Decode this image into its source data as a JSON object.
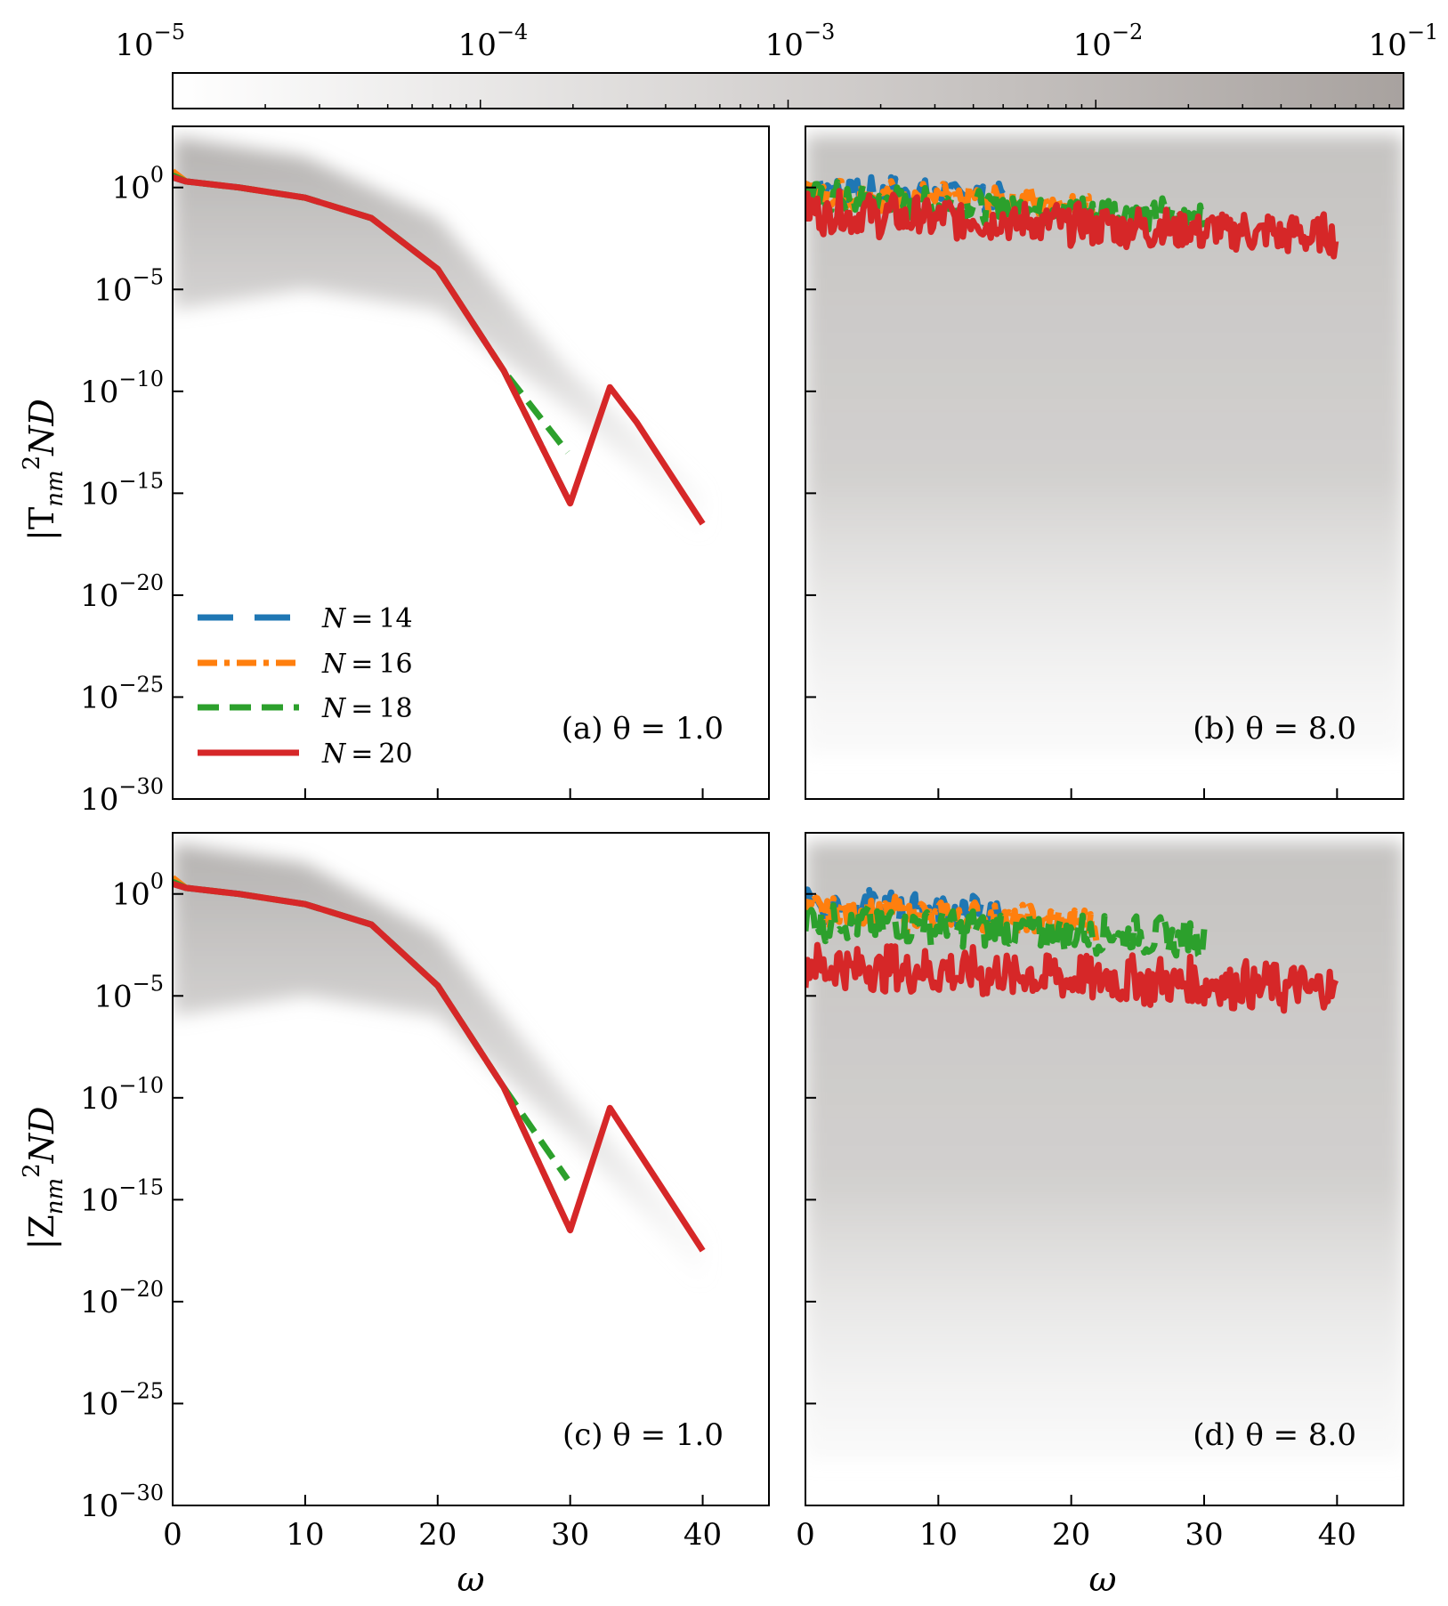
{
  "chart_data": {
    "type": "line",
    "colorbar": {
      "scale": "log",
      "range": [
        1e-05,
        0.1
      ],
      "tick_labels": [
        "10",
        "10",
        "10",
        "10",
        "10"
      ],
      "tick_exponents": [
        "−5",
        "−4",
        "−3",
        "−2",
        "−1"
      ],
      "colors": [
        "#ffffff",
        "#a8a29f"
      ]
    },
    "series_style": [
      {
        "name": "N = 14",
        "n": "14",
        "color": "#1f77b4",
        "dash": "dashed"
      },
      {
        "name": "N = 16",
        "n": "16",
        "color": "#ff7f0e",
        "dash": "dashdot"
      },
      {
        "name": "N = 18",
        "n": "18",
        "color": "#2ca02c",
        "dash": "dashed-short"
      },
      {
        "name": "N = 20",
        "n": "20",
        "color": "#d62728",
        "dash": "solid"
      }
    ],
    "legend": {
      "prefix": "N",
      "eq": "=",
      "placement": "lower-left of panel (a)"
    },
    "xaxis": {
      "label": "ω",
      "range": [
        0,
        45
      ],
      "ticks": [
        0,
        10,
        20,
        30,
        40
      ]
    },
    "yaxis": {
      "scale": "log",
      "range_exponent": [
        -30,
        3
      ],
      "tick_exponents": [
        0,
        -5,
        -10,
        -15,
        -20,
        -25,
        -30
      ],
      "tick_base": "10",
      "tick_exp_labels": [
        "0",
        "−5",
        "−10",
        "−15",
        "−20",
        "−25",
        "−30"
      ]
    },
    "row_labels": [
      {
        "main": "|T",
        "sub": "nm",
        "sup": "2",
        "tail": "ND"
      },
      {
        "main": "|Z",
        "sub": "nm",
        "sup": "2",
        "tail": "ND"
      }
    ],
    "panels": [
      {
        "id": "a",
        "annotation": "(a) θ = 1.0",
        "theta": 1.0,
        "series": [
          {
            "name": "N = 14",
            "x": [
              0,
              1,
              5,
              10,
              15,
              20,
              25,
              30
            ],
            "log10_y": [
              0.5,
              0.3,
              0.0,
              -0.5,
              -1.5,
              -4.0,
              -9.0,
              -15.5
            ]
          },
          {
            "name": "N = 16",
            "x": [
              0,
              1,
              5,
              10,
              15,
              20,
              25,
              30
            ],
            "log10_y": [
              0.8,
              0.3,
              0.0,
              -0.5,
              -1.5,
              -4.0,
              -9.0,
              -15.5
            ]
          },
          {
            "name": "N = 18",
            "x": [
              0,
              1,
              5,
              10,
              15,
              20,
              25,
              29.8
            ],
            "log10_y": [
              0.6,
              0.3,
              0.0,
              -0.5,
              -1.5,
              -4.0,
              -9.0,
              -13.0
            ]
          },
          {
            "name": "N = 20",
            "x": [
              0,
              1,
              5,
              10,
              15,
              20,
              25,
              30,
              33,
              35,
              38,
              40
            ],
            "log10_y": [
              0.5,
              0.3,
              0.0,
              -0.5,
              -1.5,
              -4.0,
              -9.0,
              -15.5,
              -9.8,
              -11.5,
              -14.5,
              -16.5
            ]
          }
        ],
        "band_log10": {
          "x": [
            0,
            10,
            20,
            30,
            40
          ],
          "upper": [
            2.5,
            1.5,
            -1.5,
            -9,
            -15
          ],
          "lower": [
            -6,
            -5,
            -6,
            -11,
            -17
          ]
        }
      },
      {
        "id": "b",
        "annotation": "(b) θ = 8.0",
        "theta": 8.0,
        "series": [
          {
            "name": "N = 14",
            "x_max": 15,
            "log10_level": 0.0,
            "amp": 1.2
          },
          {
            "name": "N = 16",
            "x_max": 22,
            "log10_level": -0.2,
            "amp": 1.2
          },
          {
            "name": "N = 18",
            "x_max": 30,
            "log10_level": -0.5,
            "amp": 1.4
          },
          {
            "name": "N = 20",
            "x_max": 40,
            "log10_level": -1.2,
            "amp": 1.8
          }
        ]
      },
      {
        "id": "c",
        "annotation": "(c) θ = 1.0",
        "theta": 1.0,
        "series": [
          {
            "name": "N = 14",
            "x": [
              0,
              1,
              5,
              10,
              15,
              20,
              25,
              30
            ],
            "log10_y": [
              0.5,
              0.3,
              0.0,
              -0.5,
              -1.5,
              -4.5,
              -9.5,
              -16.5
            ]
          },
          {
            "name": "N = 16",
            "x": [
              0,
              1,
              5,
              10,
              15,
              20,
              25,
              30
            ],
            "log10_y": [
              0.8,
              0.3,
              0.0,
              -0.5,
              -1.5,
              -4.5,
              -9.5,
              -16.5
            ]
          },
          {
            "name": "N = 18",
            "x": [
              0,
              1,
              5,
              10,
              15,
              20,
              25,
              29.8
            ],
            "log10_y": [
              0.6,
              0.3,
              0.0,
              -0.5,
              -1.5,
              -4.5,
              -9.5,
              -14.0
            ]
          },
          {
            "name": "N = 20",
            "x": [
              0,
              1,
              5,
              10,
              15,
              20,
              25,
              30,
              33,
              35,
              38,
              40
            ],
            "log10_y": [
              0.5,
              0.3,
              0.0,
              -0.5,
              -1.5,
              -4.5,
              -9.5,
              -16.5,
              -10.5,
              -12.5,
              -15.5,
              -17.5
            ]
          }
        ],
        "band_log10": {
          "x": [
            0,
            10,
            20,
            30,
            40
          ],
          "upper": [
            2.5,
            1.5,
            -2,
            -10,
            -17
          ],
          "lower": [
            -6,
            -5,
            -6,
            -12,
            -19
          ]
        }
      },
      {
        "id": "d",
        "annotation": "(d) θ = 8.0",
        "theta": 8.0,
        "series": [
          {
            "name": "N = 14",
            "x_max": 15,
            "log10_level": -0.5,
            "amp": 1.4
          },
          {
            "name": "N = 16",
            "x_max": 22,
            "log10_level": -0.8,
            "amp": 1.4
          },
          {
            "name": "N = 18",
            "x_max": 30,
            "log10_level": -1.3,
            "amp": 1.6
          },
          {
            "name": "N = 20",
            "x_max": 40,
            "log10_level": -3.5,
            "amp": 2.2
          }
        ]
      }
    ]
  }
}
